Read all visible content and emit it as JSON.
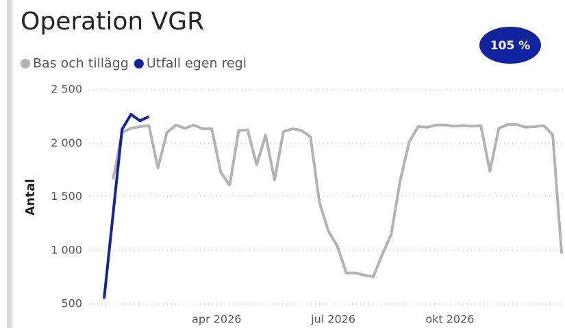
{
  "chart_data": {
    "type": "line",
    "title": "Operation VGR",
    "badge": "105 %",
    "y_label": "Antal",
    "categories": [
      null,
      null,
      null,
      null,
      null,
      null,
      null,
      null,
      null,
      null,
      null,
      null,
      null,
      "apr 2026",
      null,
      null,
      null,
      null,
      null,
      null,
      null,
      null,
      null,
      null,
      null,
      null,
      "jul 2026",
      null,
      null,
      null,
      null,
      null,
      null,
      null,
      null,
      null,
      null,
      null,
      null,
      "okt 2026",
      null,
      null,
      null,
      null,
      null,
      null,
      null,
      null,
      null,
      null,
      null,
      null
    ],
    "series": [
      {
        "name": "Bas och tillägg",
        "color": "#b3b3b3",
        "values": [
          null,
          1663,
          2100,
          2140,
          2155,
          2165,
          1770,
          2100,
          2170,
          2140,
          2170,
          2135,
          2135,
          1730,
          1610,
          2120,
          2125,
          1800,
          2075,
          1660,
          2110,
          2135,
          2120,
          2060,
          1450,
          1180,
          1040,
          790,
          790,
          770,
          755,
          960,
          1150,
          1650,
          2010,
          2155,
          2150,
          2170,
          2170,
          2160,
          2165,
          2160,
          2165,
          1740,
          2140,
          2175,
          2175,
          2150,
          2155,
          2165,
          2080,
          970
        ]
      },
      {
        "name": "Utfall egen regi",
        "color": "#12239e",
        "values": [
          550,
          1340,
          2130,
          2270,
          2210,
          2250,
          null,
          null,
          null,
          null,
          null,
          null,
          null,
          null,
          null,
          null,
          null,
          null,
          null,
          null,
          null,
          null,
          null,
          null,
          null,
          null,
          null,
          null,
          null,
          null,
          null,
          null,
          null,
          null,
          null,
          null,
          null,
          null,
          null,
          null,
          null,
          null,
          null,
          null,
          null,
          null,
          null,
          null,
          null,
          null,
          null,
          null
        ]
      }
    ],
    "ylim": [
      500,
      2500
    ],
    "yticks": [
      500,
      {
        "value": 1000,
        "label": "1 000"
      },
      {
        "value": 1500,
        "label": "1 500"
      },
      {
        "value": 2000,
        "label": "2 000"
      },
      {
        "value": 2500,
        "label": "2 500"
      }
    ],
    "grid": true
  }
}
